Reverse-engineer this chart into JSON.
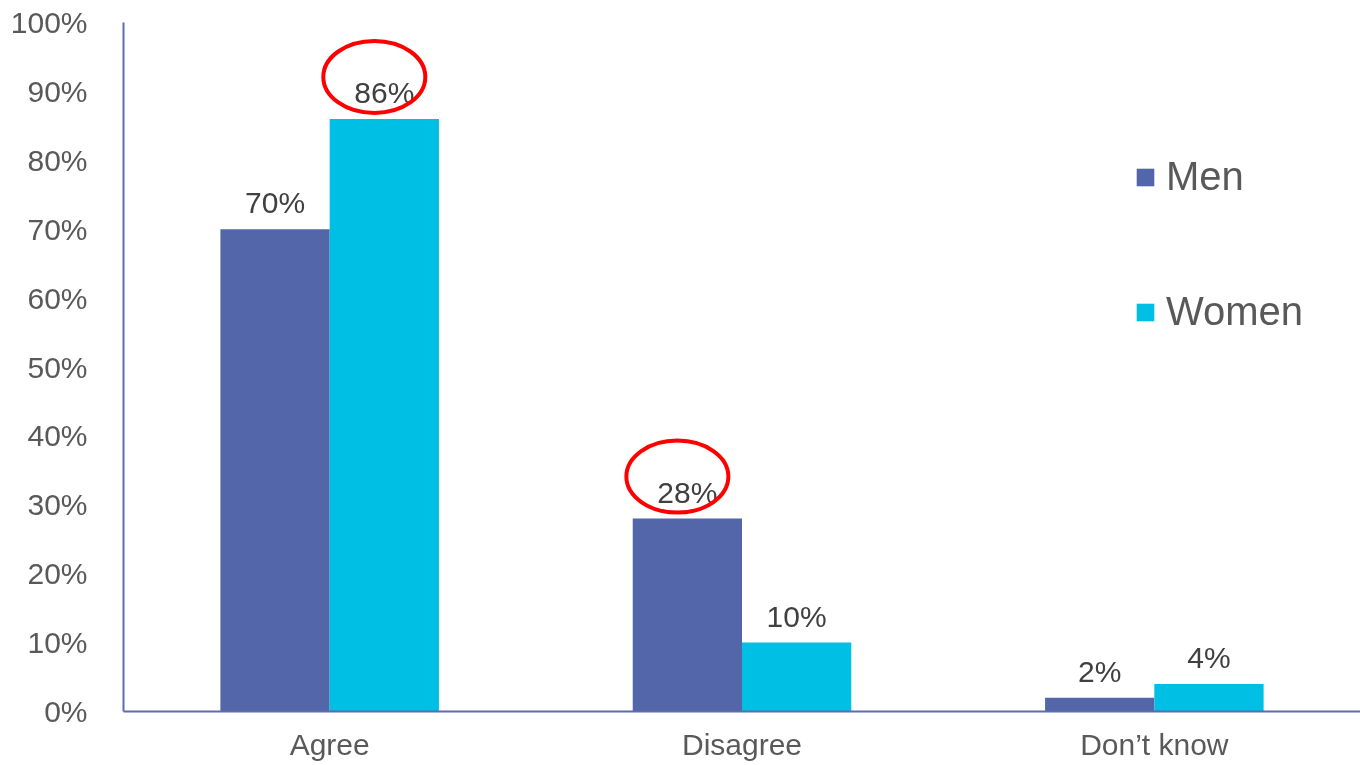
{
  "chart_data": {
    "type": "bar",
    "categories": [
      "Agree",
      "Disagree",
      "Don’t know"
    ],
    "series": [
      {
        "name": "Men",
        "color": "#5366a9",
        "values": [
          70,
          28,
          2
        ],
        "value_labels": [
          "70%",
          "28%",
          "2%"
        ]
      },
      {
        "name": "Women",
        "color": "#00bfe4",
        "values": [
          86,
          10,
          4
        ],
        "value_labels": [
          "86%",
          "10%",
          "4%"
        ]
      }
    ],
    "ylim": [
      0,
      100
    ],
    "yticks": [
      {
        "value": 0,
        "label": "0%"
      },
      {
        "value": 10,
        "label": "10%"
      },
      {
        "value": 20,
        "label": "20%"
      },
      {
        "value": 30,
        "label": "30%"
      },
      {
        "value": 40,
        "label": "40%"
      },
      {
        "value": 50,
        "label": "50%"
      },
      {
        "value": 60,
        "label": "60%"
      },
      {
        "value": 70,
        "label": "70%"
      },
      {
        "value": 80,
        "label": "80%"
      },
      {
        "value": 90,
        "label": "90%"
      },
      {
        "value": 100,
        "label": "100%"
      }
    ],
    "grid": false,
    "legend": "top right"
  }
}
